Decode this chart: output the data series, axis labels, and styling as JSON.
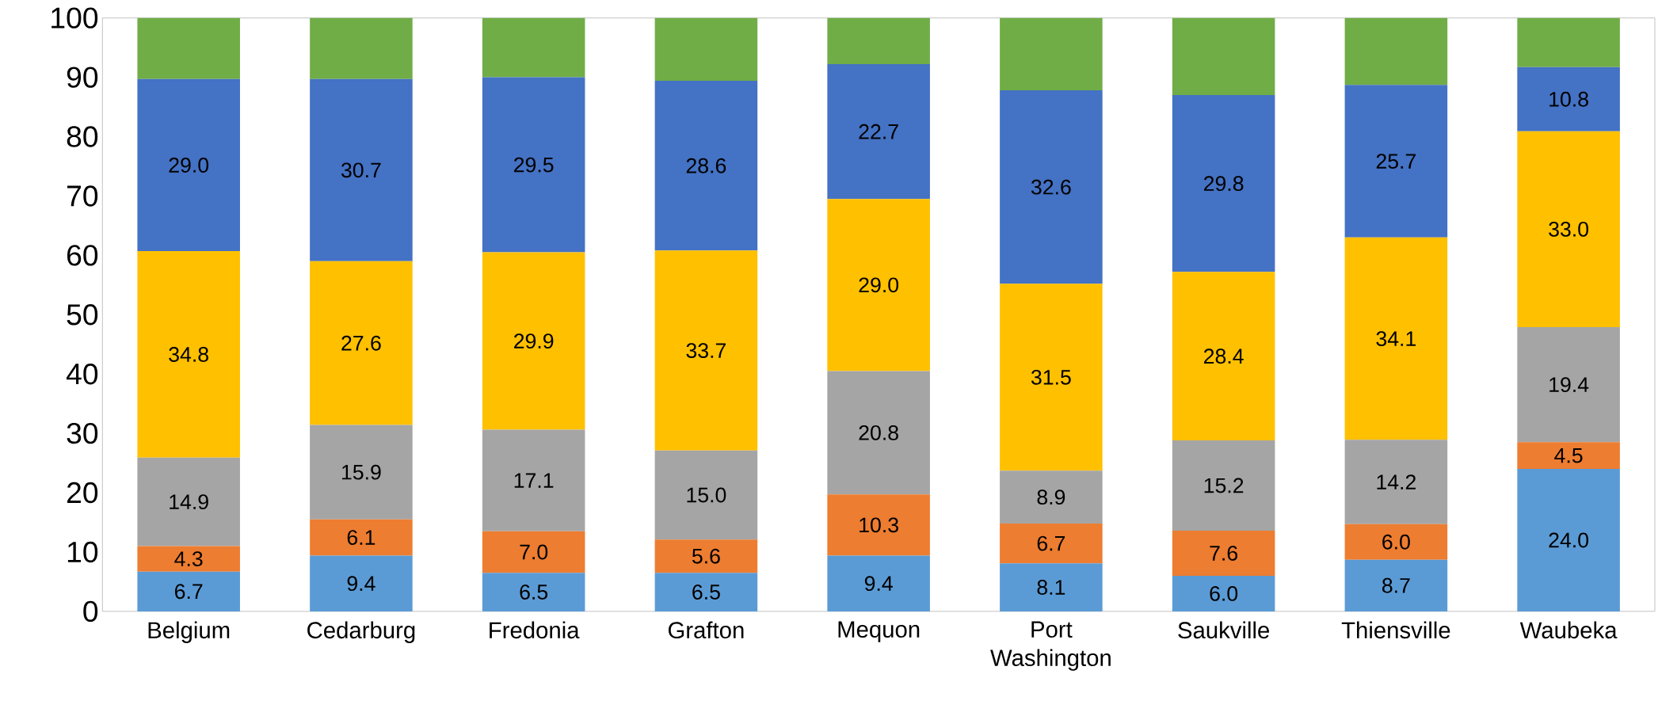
{
  "chart_data": {
    "type": "bar",
    "stacked": true,
    "categories": [
      "Belgium",
      "Cedarburg",
      "Fredonia",
      "Grafton",
      "Mequon",
      "Port Washington",
      "Saukville",
      "Thiensville",
      "Waubeka"
    ],
    "series": [
      {
        "color": "#5b9bd5",
        "values": [
          6.7,
          9.4,
          6.5,
          6.5,
          9.4,
          8.1,
          6.0,
          8.7,
          24.0
        ],
        "value_labels": [
          "6.7",
          "9.4",
          "6.5",
          "6.5",
          "9.4",
          "8.1",
          "6.0",
          "8.7",
          "24.0"
        ]
      },
      {
        "color": "#ed7d31",
        "values": [
          4.3,
          6.1,
          7.0,
          5.6,
          10.3,
          6.7,
          7.6,
          6.0,
          4.5
        ],
        "value_labels": [
          "4.3",
          "6.1",
          "7.0",
          "5.6",
          "10.3",
          "6.7",
          "7.6",
          "6.0",
          "4.5"
        ]
      },
      {
        "color": "#a5a5a5",
        "values": [
          14.9,
          15.9,
          17.1,
          15.0,
          20.8,
          8.9,
          15.2,
          14.2,
          19.4
        ],
        "value_labels": [
          "14.9",
          "15.9",
          "17.1",
          "15.0",
          "20.8",
          "8.9",
          "15.2",
          "14.2",
          "19.4"
        ]
      },
      {
        "color": "#ffc000",
        "values": [
          34.8,
          27.6,
          29.9,
          33.7,
          29.0,
          31.5,
          28.4,
          34.1,
          33.0
        ],
        "value_labels": [
          "34.8",
          "27.6",
          "29.9",
          "33.7",
          "29.0",
          "31.5",
          "28.4",
          "34.1",
          "33.0"
        ]
      },
      {
        "color": "#4472c4",
        "values": [
          29.0,
          30.7,
          29.5,
          28.6,
          22.7,
          32.6,
          29.8,
          25.7,
          10.8
        ],
        "value_labels": [
          "29.0",
          "30.7",
          "29.5",
          "28.6",
          "22.7",
          "32.6",
          "29.8",
          "25.7",
          "10.8"
        ]
      },
      {
        "color": "#70ad47",
        "values": [
          10.3,
          10.3,
          10.0,
          10.6,
          7.8,
          12.2,
          13.0,
          11.3,
          8.3
        ]
      }
    ],
    "ylim": [
      0,
      100
    ],
    "yticks": [
      0,
      10,
      20,
      30,
      40,
      50,
      60,
      70,
      80,
      90,
      100
    ]
  }
}
